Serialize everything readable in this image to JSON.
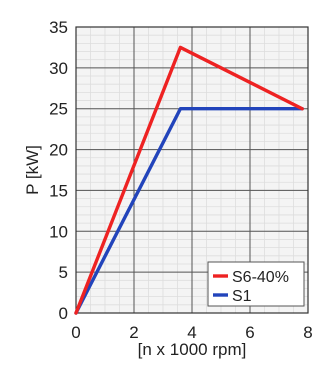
{
  "chart_data": {
    "type": "line",
    "xlabel": "[n x 1000 rpm]",
    "ylabel": "P [kW]",
    "xlim": [
      0,
      8
    ],
    "ylim": [
      0,
      35
    ],
    "x_ticks": [
      0,
      2,
      4,
      6,
      8
    ],
    "y_ticks": [
      0,
      5,
      10,
      15,
      20,
      25,
      30,
      35
    ],
    "x_tick_labels": [
      "0",
      "2",
      "4",
      "6",
      "8"
    ],
    "y_tick_labels": [
      "0",
      "5",
      "10",
      "15",
      "20",
      "25",
      "30",
      "35"
    ],
    "grid": true,
    "legend_position": "bottom-right",
    "series": [
      {
        "name": "S6-40%",
        "color": "#ee2222",
        "x": [
          0,
          3.6,
          7.8
        ],
        "y": [
          0,
          32.5,
          25
        ]
      },
      {
        "name": "S1",
        "color": "#2244bb",
        "x": [
          0,
          3.6,
          7.8
        ],
        "y": [
          0,
          25,
          25
        ]
      }
    ]
  }
}
